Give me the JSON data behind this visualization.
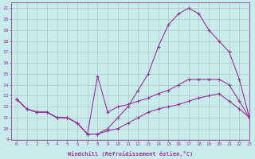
{
  "xlabel": "Windchill (Refroidissement éolien,°C)",
  "xlim": [
    -0.5,
    23
  ],
  "ylim": [
    9,
    21.5
  ],
  "xticks": [
    0,
    1,
    2,
    3,
    4,
    5,
    6,
    7,
    8,
    9,
    10,
    11,
    12,
    13,
    14,
    15,
    16,
    17,
    18,
    19,
    20,
    21,
    22,
    23
  ],
  "yticks": [
    9,
    10,
    11,
    12,
    13,
    14,
    15,
    16,
    17,
    18,
    19,
    20,
    21
  ],
  "bg_color": "#c8ecec",
  "grid_color": "#b0c8c8",
  "line_color": "#993399",
  "curve_big_x": [
    0,
    1,
    2,
    3,
    4,
    5,
    6,
    7,
    8,
    9,
    10,
    11,
    12,
    13,
    14,
    15,
    16,
    17,
    18,
    19,
    20,
    21,
    22,
    23
  ],
  "curve_big_y": [
    12.7,
    11.8,
    11.5,
    11.5,
    11.0,
    11.0,
    10.5,
    9.5,
    9.5,
    10.0,
    11.0,
    12.0,
    13.5,
    15.0,
    17.5,
    19.5,
    20.5,
    21.0,
    20.5,
    19.0,
    18.0,
    17.0,
    14.5,
    11.0
  ],
  "curve_mid_x": [
    0,
    1,
    2,
    3,
    4,
    5,
    6,
    7,
    8,
    9,
    10,
    11,
    12,
    13,
    14,
    15,
    16,
    17,
    18,
    19,
    20,
    21,
    22,
    23
  ],
  "curve_mid_y": [
    12.7,
    11.8,
    11.5,
    11.5,
    11.0,
    11.0,
    10.5,
    9.5,
    14.8,
    11.5,
    12.0,
    12.2,
    12.5,
    12.8,
    13.2,
    13.5,
    14.0,
    14.5,
    14.5,
    14.5,
    14.5,
    14.0,
    12.5,
    11.0
  ],
  "curve_low_x": [
    0,
    1,
    2,
    3,
    4,
    5,
    6,
    7,
    8,
    9,
    10,
    11,
    12,
    13,
    14,
    15,
    16,
    17,
    18,
    19,
    20,
    21,
    22,
    23
  ],
  "curve_low_y": [
    12.7,
    11.8,
    11.5,
    11.5,
    11.0,
    11.0,
    10.5,
    9.5,
    9.5,
    9.8,
    10.0,
    10.5,
    11.0,
    11.5,
    11.8,
    12.0,
    12.2,
    12.5,
    12.8,
    13.0,
    13.2,
    12.5,
    11.8,
    11.0
  ]
}
